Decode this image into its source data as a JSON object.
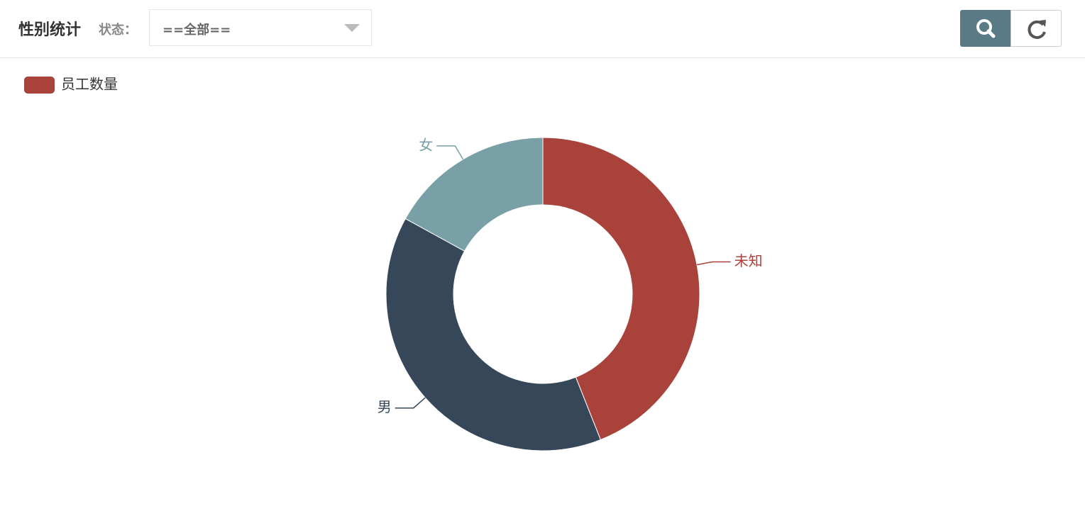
{
  "header": {
    "title": "性别统计",
    "filter_label": "状态：",
    "filter_value": "==全部=="
  },
  "chart_data": {
    "type": "pie",
    "donut": true,
    "categories": [
      "未知",
      "男",
      "女"
    ],
    "series": [
      {
        "name": "员工数量",
        "values": [
          44,
          39,
          17
        ],
        "colors": [
          "#a9423a",
          "#36475a",
          "#78a0a6"
        ]
      }
    ]
  }
}
